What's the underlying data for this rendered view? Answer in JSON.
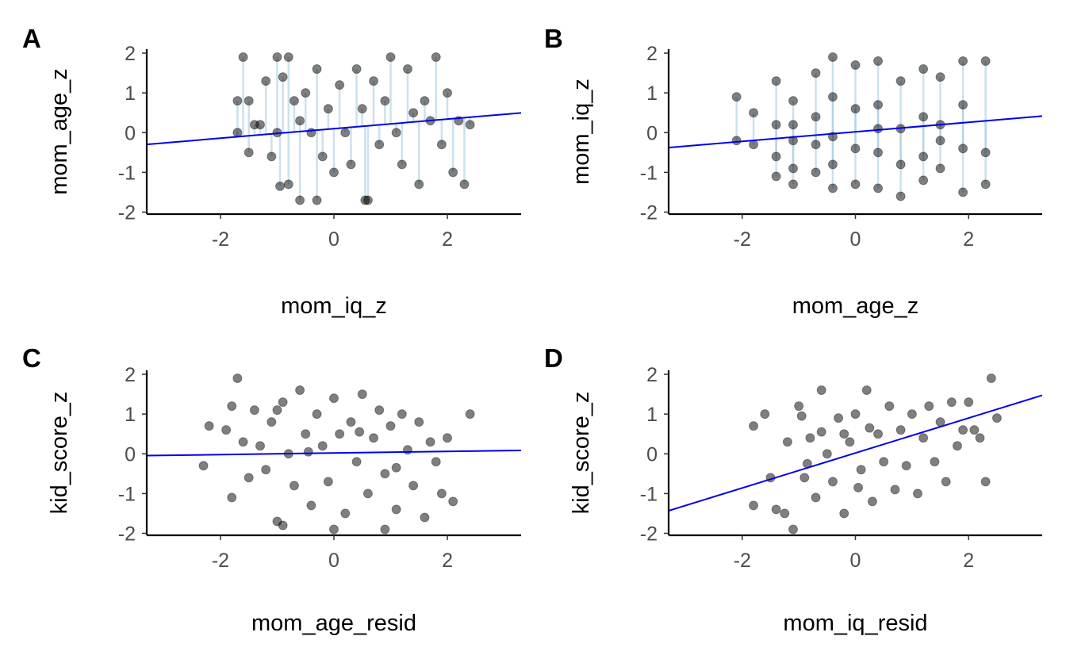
{
  "chart_data": [
    {
      "type": "scatter",
      "tag": "A",
      "xlabel": "mom_iq_z",
      "ylabel": "mom_age_z",
      "xlim": [
        -3.3,
        3.3
      ],
      "ylim": [
        -2.05,
        2.1
      ],
      "xticks": [
        "-2",
        "0",
        "2"
      ],
      "xtick_values": [
        -2,
        0,
        2
      ],
      "yticks": [
        "-2",
        "-1",
        "0",
        "1",
        "2"
      ],
      "ytick_values": [
        -2,
        -1,
        0,
        1,
        2
      ],
      "fit_line": {
        "slope": 0.12,
        "intercept": 0.1,
        "color": "#0000ee"
      },
      "point_color": "#000000",
      "residual_color": "#9ecae1",
      "points": [
        [
          -1.6,
          1.9
        ],
        [
          -1.7,
          0.8
        ],
        [
          -1.5,
          0.8
        ],
        [
          -1.7,
          0.0
        ],
        [
          -1.4,
          0.2
        ],
        [
          -1.5,
          -0.5
        ],
        [
          -1.3,
          0.2
        ],
        [
          -1.2,
          1.3
        ],
        [
          -1.1,
          -0.6
        ],
        [
          -1.0,
          0.0
        ],
        [
          -0.9,
          1.4
        ],
        [
          -0.8,
          -1.3
        ],
        [
          -0.7,
          0.8
        ],
        [
          -0.6,
          0.3
        ],
        [
          -0.5,
          1.0
        ],
        [
          -0.4,
          0.0
        ],
        [
          -0.3,
          1.6
        ],
        [
          -0.2,
          -0.6
        ],
        [
          -0.1,
          0.6
        ],
        [
          0.0,
          -1.0
        ],
        [
          0.1,
          1.2
        ],
        [
          0.2,
          0.0
        ],
        [
          0.3,
          -0.8
        ],
        [
          0.4,
          1.6
        ],
        [
          0.5,
          0.6
        ],
        [
          0.6,
          -1.7
        ],
        [
          0.7,
          1.3
        ],
        [
          0.8,
          -0.3
        ],
        [
          0.9,
          0.8
        ],
        [
          1.0,
          1.9
        ],
        [
          1.1,
          0.0
        ],
        [
          1.2,
          -0.8
        ],
        [
          1.3,
          1.6
        ],
        [
          1.4,
          0.5
        ],
        [
          1.5,
          -1.3
        ],
        [
          1.6,
          0.8
        ],
        [
          1.7,
          0.3
        ],
        [
          1.8,
          1.9
        ],
        [
          1.9,
          -0.3
        ],
        [
          2.0,
          1.0
        ],
        [
          2.1,
          -1.0
        ],
        [
          2.2,
          0.3
        ],
        [
          2.3,
          -1.3
        ],
        [
          2.4,
          0.2
        ],
        [
          -0.95,
          -1.35
        ],
        [
          -0.6,
          -1.7
        ],
        [
          -0.3,
          -1.7
        ],
        [
          0.55,
          -1.7
        ],
        [
          -1.0,
          1.9
        ],
        [
          -0.8,
          1.9
        ]
      ]
    },
    {
      "type": "scatter",
      "tag": "B",
      "xlabel": "mom_age_z",
      "ylabel": "mom_iq_z",
      "xlim": [
        -3.3,
        3.3
      ],
      "ylim": [
        -2.05,
        2.1
      ],
      "xticks": [
        "-2",
        "0",
        "2"
      ],
      "xtick_values": [
        -2,
        0,
        2
      ],
      "yticks": [
        "-2",
        "-1",
        "0",
        "1",
        "2"
      ],
      "ytick_values": [
        -2,
        -1,
        0,
        1,
        2
      ],
      "fit_line": {
        "slope": 0.12,
        "intercept": 0.02,
        "color": "#0000ee"
      },
      "point_color": "#000000",
      "residual_color": "#9ecae1",
      "points": [
        [
          -2.1,
          0.9
        ],
        [
          -2.1,
          -0.2
        ],
        [
          -1.8,
          0.5
        ],
        [
          -1.8,
          -0.3
        ],
        [
          -1.4,
          1.3
        ],
        [
          -1.4,
          0.2
        ],
        [
          -1.4,
          -0.6
        ],
        [
          -1.4,
          -1.1
        ],
        [
          -1.1,
          0.8
        ],
        [
          -1.1,
          -0.2
        ],
        [
          -1.1,
          -0.9
        ],
        [
          -1.1,
          -1.3
        ],
        [
          -0.7,
          1.5
        ],
        [
          -0.7,
          0.4
        ],
        [
          -0.7,
          -0.3
        ],
        [
          -0.7,
          -1.0
        ],
        [
          -0.4,
          1.9
        ],
        [
          -0.4,
          0.9
        ],
        [
          -0.4,
          -0.1
        ],
        [
          -0.4,
          -0.8
        ],
        [
          -0.4,
          -1.4
        ],
        [
          0.0,
          1.7
        ],
        [
          0.0,
          0.6
        ],
        [
          0.0,
          -0.4
        ],
        [
          0.0,
          -1.3
        ],
        [
          0.4,
          1.8
        ],
        [
          0.4,
          0.7
        ],
        [
          0.4,
          -0.5
        ],
        [
          0.4,
          -1.4
        ],
        [
          0.8,
          1.3
        ],
        [
          0.8,
          0.1
        ],
        [
          0.8,
          -0.8
        ],
        [
          0.8,
          -1.6
        ],
        [
          1.2,
          1.6
        ],
        [
          1.2,
          0.4
        ],
        [
          1.2,
          -0.6
        ],
        [
          1.2,
          -1.2
        ],
        [
          1.5,
          1.4
        ],
        [
          1.5,
          0.2
        ],
        [
          1.5,
          -0.9
        ],
        [
          1.9,
          1.8
        ],
        [
          1.9,
          0.7
        ],
        [
          1.9,
          -0.4
        ],
        [
          1.9,
          -1.5
        ],
        [
          2.3,
          1.8
        ],
        [
          2.3,
          -0.5
        ],
        [
          2.3,
          -1.3
        ],
        [
          -1.1,
          0.2
        ],
        [
          0.4,
          0.1
        ],
        [
          1.5,
          -0.2
        ]
      ]
    },
    {
      "type": "scatter",
      "tag": "C",
      "xlabel": "mom_age_resid",
      "ylabel": "kid_score_z",
      "xlim": [
        -3.3,
        3.3
      ],
      "ylim": [
        -2.05,
        2.1
      ],
      "xticks": [
        "-2",
        "0",
        "2"
      ],
      "xtick_values": [
        -2,
        0,
        2
      ],
      "yticks": [
        "-2",
        "-1",
        "0",
        "1",
        "2"
      ],
      "ytick_values": [
        -2,
        -1,
        0,
        1,
        2
      ],
      "fit_line": {
        "slope": 0.02,
        "intercept": 0.02,
        "color": "#0000ee"
      },
      "point_color": "#000000",
      "points": [
        [
          -2.3,
          -0.3
        ],
        [
          -2.2,
          0.7
        ],
        [
          -1.9,
          0.6
        ],
        [
          -1.8,
          1.2
        ],
        [
          -1.7,
          1.9
        ],
        [
          -1.8,
          -1.1
        ],
        [
          -1.6,
          0.3
        ],
        [
          -1.5,
          -0.6
        ],
        [
          -1.4,
          1.1
        ],
        [
          -1.3,
          0.2
        ],
        [
          -1.2,
          -0.4
        ],
        [
          -1.1,
          0.8
        ],
        [
          -1.0,
          -1.7
        ],
        [
          -0.9,
          1.3
        ],
        [
          -0.8,
          0.0
        ],
        [
          -0.7,
          -0.8
        ],
        [
          -0.6,
          1.6
        ],
        [
          -0.5,
          0.5
        ],
        [
          -0.4,
          -1.3
        ],
        [
          -0.3,
          1.0
        ],
        [
          -0.2,
          0.2
        ],
        [
          -0.1,
          -0.7
        ],
        [
          0.0,
          1.4
        ],
        [
          0.1,
          0.5
        ],
        [
          0.2,
          -1.5
        ],
        [
          0.3,
          0.8
        ],
        [
          0.4,
          -0.2
        ],
        [
          0.5,
          1.5
        ],
        [
          0.6,
          -1.0
        ],
        [
          0.7,
          0.4
        ],
        [
          0.8,
          1.1
        ],
        [
          0.9,
          -0.5
        ],
        [
          1.0,
          0.7
        ],
        [
          1.1,
          -1.4
        ],
        [
          1.2,
          1.0
        ],
        [
          1.3,
          0.1
        ],
        [
          1.4,
          -0.8
        ],
        [
          1.5,
          0.8
        ],
        [
          1.6,
          -1.6
        ],
        [
          1.7,
          0.3
        ],
        [
          1.8,
          -0.2
        ],
        [
          1.9,
          -1.0
        ],
        [
          2.0,
          0.4
        ],
        [
          2.1,
          -1.2
        ],
        [
          2.4,
          1.0
        ],
        [
          -1.0,
          1.1
        ],
        [
          -0.45,
          0.05
        ],
        [
          0.45,
          0.55
        ],
        [
          1.1,
          -0.35
        ],
        [
          -0.9,
          -1.8
        ],
        [
          0.0,
          -1.9
        ],
        [
          0.9,
          -1.9
        ]
      ]
    },
    {
      "type": "scatter",
      "tag": "D",
      "xlabel": "mom_iq_resid",
      "ylabel": "kid_score_z",
      "xlim": [
        -3.3,
        3.3
      ],
      "ylim": [
        -2.05,
        2.1
      ],
      "xticks": [
        "-2",
        "0",
        "2"
      ],
      "xtick_values": [
        -2,
        0,
        2
      ],
      "yticks": [
        "-2",
        "-1",
        "0",
        "1",
        "2"
      ],
      "ytick_values": [
        -2,
        -1,
        0,
        1,
        2
      ],
      "fit_line": {
        "slope": 0.44,
        "intercept": 0.02,
        "color": "#0000ee"
      },
      "point_color": "#000000",
      "points": [
        [
          -1.8,
          0.7
        ],
        [
          -1.8,
          -1.3
        ],
        [
          -1.6,
          1.0
        ],
        [
          -1.5,
          -0.6
        ],
        [
          -1.4,
          -1.4
        ],
        [
          -1.2,
          0.3
        ],
        [
          -1.1,
          -1.9
        ],
        [
          -1.0,
          1.2
        ],
        [
          -0.9,
          -0.6
        ],
        [
          -0.8,
          0.4
        ],
        [
          -0.7,
          -1.1
        ],
        [
          -0.6,
          1.6
        ],
        [
          -0.5,
          0.0
        ],
        [
          -0.4,
          -0.7
        ],
        [
          -0.3,
          0.9
        ],
        [
          -0.2,
          -1.5
        ],
        [
          -0.1,
          0.3
        ],
        [
          0.0,
          1.0
        ],
        [
          0.1,
          -0.4
        ],
        [
          0.2,
          1.6
        ],
        [
          0.3,
          -1.2
        ],
        [
          0.4,
          0.5
        ],
        [
          0.5,
          -0.2
        ],
        [
          0.6,
          1.2
        ],
        [
          0.7,
          -0.9
        ],
        [
          0.8,
          0.6
        ],
        [
          0.9,
          -0.3
        ],
        [
          1.0,
          1.0
        ],
        [
          1.1,
          -1.0
        ],
        [
          1.2,
          0.4
        ],
        [
          1.3,
          1.2
        ],
        [
          1.4,
          -0.2
        ],
        [
          1.5,
          0.8
        ],
        [
          1.6,
          -0.7
        ],
        [
          1.7,
          1.3
        ],
        [
          1.8,
          0.2
        ],
        [
          1.9,
          0.6
        ],
        [
          2.0,
          1.3
        ],
        [
          2.1,
          0.6
        ],
        [
          2.2,
          0.4
        ],
        [
          2.3,
          -0.7
        ],
        [
          2.4,
          1.9
        ],
        [
          2.5,
          0.9
        ],
        [
          -0.6,
          0.55
        ],
        [
          -0.2,
          0.5
        ],
        [
          0.25,
          0.65
        ],
        [
          -0.85,
          -0.25
        ],
        [
          0.05,
          -0.85
        ],
        [
          -1.25,
          -1.5
        ],
        [
          -0.95,
          0.95
        ]
      ]
    }
  ]
}
